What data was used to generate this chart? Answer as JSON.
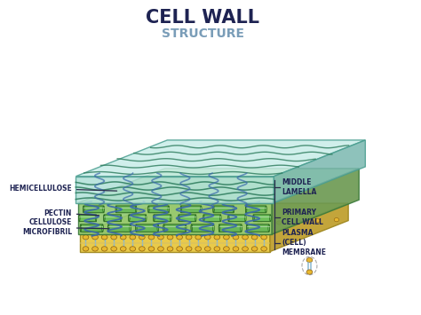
{
  "title": "CELL WALL",
  "subtitle": "STRUCTURE",
  "title_color": "#1e2352",
  "subtitle_color": "#7a9db8",
  "bg_color": "#ffffff",
  "line_color": "#2a2a4a",
  "label_color": "#1e2352",
  "label_fontsize": 5.5,
  "labels_left": [
    "HEMICELLULOSE",
    "PECTIN",
    "CELLULOSE\nMICROFIBRIL"
  ],
  "labels_right": [
    "MIDDLE\nLAMELLA",
    "PRIMARY\nCELL WALL",
    "PLASMA\n(CELL)\nMEMBRANE"
  ],
  "colors": {
    "ml_face": "#b0e0d8",
    "ml_top": "#c8ede8",
    "ml_edge": "#4a9e90",
    "ml_side": "#7ab8b0",
    "pcw_face": "#90c870",
    "pcw_top": "#a8d888",
    "pcw_edge": "#3a7a3a",
    "pcw_side": "#6a9850",
    "mem_face": "#e8c840",
    "mem_top": "#f0d860",
    "mem_edge": "#a08820",
    "mem_side": "#c0a030",
    "cellulose_body": "#6ab858",
    "cellulose_end": "#4a9840",
    "cellulose_edge": "#2a6820",
    "pectin_color": "#3a6aaa",
    "hemi_color": "#2a7a5a",
    "mem_gold": "#e8b830",
    "mem_gold_edge": "#8a6010",
    "mem_blue": "#8ab8d0"
  }
}
